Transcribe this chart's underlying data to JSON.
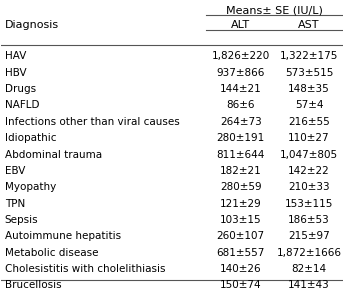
{
  "title": "Means± SE (IU/L)",
  "col_diagnosis": "Diagnosis",
  "col_alt": "ALT",
  "col_ast": "AST",
  "rows": [
    [
      "HAV",
      "1,826±220",
      "1,322±175"
    ],
    [
      "HBV",
      "937±866",
      "573±515"
    ],
    [
      "Drugs",
      "144±21",
      "148±35"
    ],
    [
      "NAFLD",
      "86±6",
      "57±4"
    ],
    [
      "Infections other than viral causes",
      "264±73",
      "216±55"
    ],
    [
      "Idiopathic",
      "280±191",
      "110±27"
    ],
    [
      "Abdominal trauma",
      "811±644",
      "1,047±805"
    ],
    [
      "EBV",
      "182±21",
      "142±22"
    ],
    [
      "Myopathy",
      "280±59",
      "210±33"
    ],
    [
      "TPN",
      "121±29",
      "153±115"
    ],
    [
      "Sepsis",
      "103±15",
      "186±53"
    ],
    [
      "Autoimmune hepatitis",
      "260±107",
      "215±97"
    ],
    [
      "Metabolic disease",
      "681±557",
      "1,872±1666"
    ],
    [
      "Cholesistitis with cholelithiasis",
      "140±26",
      "82±14"
    ],
    [
      "Brucellosis",
      "150±74",
      "141±43"
    ]
  ],
  "bg_color": "#ffffff",
  "text_color": "#000000",
  "header_line_color": "#555555",
  "font_size": 7.5,
  "header_font_size": 8.0
}
